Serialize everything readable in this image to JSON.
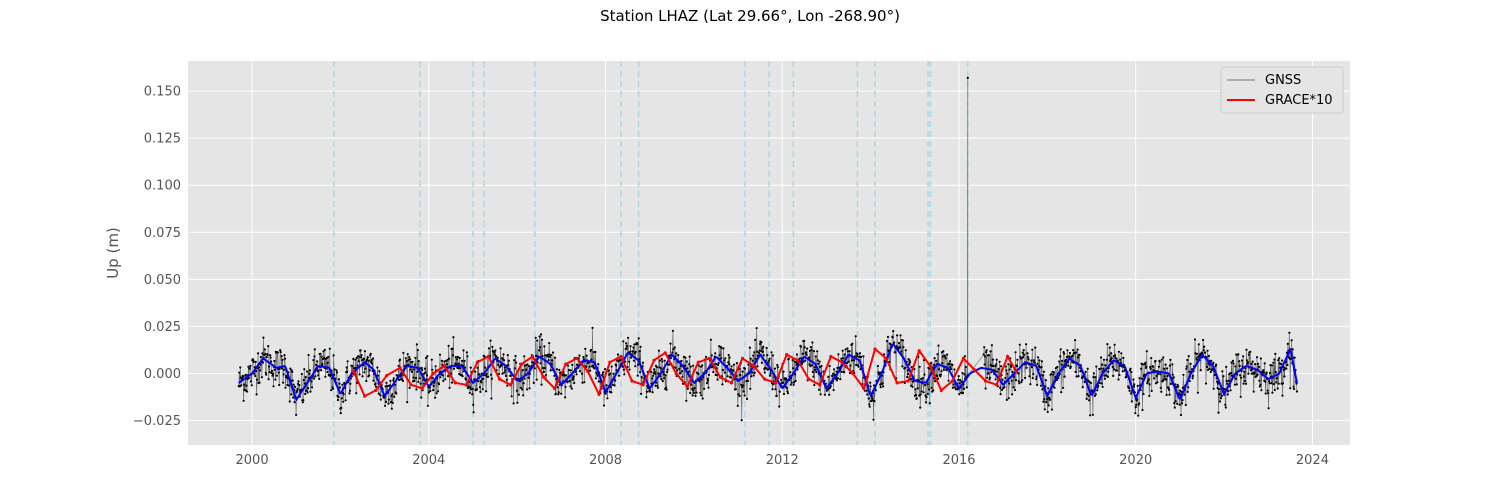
{
  "chart_data": {
    "type": "line",
    "title": "Station LHAZ (Lat 29.66°, Lon -268.90°)",
    "xlabel": "",
    "ylabel": "Up (m)",
    "xlim": [
      1998.55,
      2024.85
    ],
    "ylim": [
      -0.038,
      0.166
    ],
    "x_ticks": [
      2000,
      2004,
      2008,
      2012,
      2016,
      2020,
      2024
    ],
    "x_tick_labels": [
      "2000",
      "2004",
      "2008",
      "2012",
      "2016",
      "2020",
      "2024"
    ],
    "y_ticks": [
      -0.025,
      0.0,
      0.025,
      0.05,
      0.075,
      0.1,
      0.125,
      0.15
    ],
    "y_tick_labels": [
      "−0.025",
      "0.000",
      "0.025",
      "0.050",
      "0.075",
      "0.100",
      "0.125",
      "0.150"
    ],
    "grid": true,
    "legend_position": "top-right",
    "event_lines_x": [
      2001.85,
      2003.8,
      2005.0,
      2005.25,
      2006.4,
      2008.35,
      2008.75,
      2011.15,
      2011.7,
      2012.25,
      2013.7,
      2014.1,
      2015.3,
      2015.35,
      2016.2
    ],
    "spike": {
      "x": 2016.2,
      "y": 0.157
    },
    "series": [
      {
        "name": "GNSS",
        "type": "noisy-line",
        "x_start": 1999.7,
        "x_end": 2023.65,
        "samples": 2200,
        "noise_sd": 0.0055,
        "smooth_trace": {
          "x": [
            1999.7,
            2000.0,
            2000.25,
            2000.55,
            2000.75,
            2001.0,
            2001.25,
            2001.5,
            2001.75,
            2002.0,
            2002.25,
            2002.55,
            2002.75,
            2003.0,
            2003.25,
            2003.5,
            2003.75,
            2004.0,
            2004.25,
            2004.5,
            2004.75,
            2005.0,
            2005.25,
            2005.5,
            2005.75,
            2006.0,
            2006.25,
            2006.5,
            2006.75,
            2007.0,
            2007.25,
            2007.5,
            2007.75,
            2008.0,
            2008.25,
            2008.5,
            2008.75,
            2009.0,
            2009.25,
            2009.5,
            2009.75,
            2010.0,
            2010.25,
            2010.5,
            2010.75,
            2011.0,
            2011.25,
            2011.5,
            2011.75,
            2012.0,
            2012.25,
            2012.5,
            2012.75,
            2013.0,
            2013.25,
            2013.5,
            2013.75,
            2014.0,
            2014.25,
            2014.5,
            2014.75,
            2015.0,
            2015.25,
            2015.5,
            2015.75,
            2016.0,
            2016.25,
            2016.5,
            2016.75,
            2017.0,
            2017.25,
            2017.5,
            2017.75,
            2018.0,
            2018.25,
            2018.5,
            2018.75,
            2019.0,
            2019.25,
            2019.5,
            2019.75,
            2020.0,
            2020.25,
            2020.5,
            2020.75,
            2021.0,
            2021.25,
            2021.5,
            2021.75,
            2022.0,
            2022.25,
            2022.5,
            2022.75,
            2023.0,
            2023.25,
            2023.5,
            2023.65
          ],
          "y": [
            -0.005,
            0.0,
            0.008,
            0.003,
            0.004,
            -0.014,
            -0.005,
            0.004,
            0.003,
            -0.011,
            0.0,
            0.006,
            0.002,
            -0.012,
            -0.004,
            0.004,
            0.003,
            -0.007,
            0.0,
            0.004,
            0.004,
            -0.005,
            0.0,
            0.008,
            0.004,
            -0.004,
            0.0,
            0.009,
            0.005,
            -0.006,
            0.0,
            0.007,
            0.006,
            -0.01,
            0.0,
            0.011,
            0.007,
            -0.008,
            0.0,
            0.01,
            0.004,
            -0.005,
            0.0,
            0.009,
            0.003,
            -0.004,
            0.0,
            0.01,
            0.002,
            -0.008,
            0.0,
            0.009,
            0.005,
            -0.008,
            0.0,
            0.01,
            0.007,
            -0.012,
            0.0,
            0.016,
            0.008,
            -0.004,
            -0.005,
            0.005,
            0.003,
            -0.008,
            0.0,
            0.003,
            0.002,
            -0.006,
            0.0,
            0.006,
            0.004,
            -0.012,
            0.0,
            0.008,
            0.004,
            -0.012,
            0.0,
            0.007,
            0.004,
            -0.013,
            0.0,
            0.001,
            0.0,
            -0.014,
            0.0,
            0.01,
            0.004,
            -0.011,
            0.0,
            0.004,
            0.002,
            -0.003,
            0.0,
            0.013,
            -0.005
          ]
        },
        "color": "#000000"
      },
      {
        "name": "GRACE*10",
        "type": "line",
        "x": [
          2002.3,
          2002.55,
          2002.8,
          2003.05,
          2003.35,
          2003.6,
          2003.85,
          2004.1,
          2004.35,
          2004.6,
          2004.85,
          2005.1,
          2005.35,
          2005.6,
          2005.85,
          2006.1,
          2006.35,
          2006.6,
          2006.85,
          2007.1,
          2007.35,
          2007.6,
          2007.85,
          2008.1,
          2008.35,
          2008.6,
          2008.85,
          2009.1,
          2009.35,
          2009.6,
          2009.85,
          2010.1,
          2010.35,
          2010.6,
          2010.85,
          2011.1,
          2011.35,
          2011.6,
          2011.85,
          2012.1,
          2012.35,
          2012.6,
          2012.85,
          2013.1,
          2013.35,
          2013.6,
          2013.85,
          2014.1,
          2014.35,
          2014.6,
          2014.85,
          2015.1,
          2015.35,
          2015.6,
          2015.85,
          2016.1,
          2016.35,
          2016.6,
          2016.85,
          2017.1,
          2017.3
        ],
        "y": [
          0.001,
          -0.012,
          -0.009,
          -0.001,
          0.003,
          -0.006,
          -0.008,
          0.0,
          0.004,
          -0.005,
          -0.006,
          0.006,
          0.009,
          -0.003,
          -0.006,
          0.005,
          0.009,
          -0.002,
          -0.008,
          0.005,
          0.008,
          0.001,
          -0.011,
          0.006,
          0.009,
          -0.004,
          -0.006,
          0.007,
          0.011,
          0.0,
          -0.007,
          0.006,
          0.008,
          -0.002,
          -0.005,
          0.008,
          0.004,
          -0.003,
          -0.005,
          0.01,
          0.007,
          -0.003,
          -0.006,
          0.009,
          0.006,
          0.0,
          -0.008,
          0.013,
          0.008,
          -0.005,
          -0.004,
          0.012,
          0.004,
          -0.009,
          -0.004,
          0.008,
          0.002,
          -0.004,
          -0.006,
          0.009,
          0.001
        ],
        "color": "#ff0000"
      }
    ],
    "colors": {
      "plot_background": "#e5e5e5",
      "grid": "#ffffff",
      "gnss": "#000000",
      "gnss_smooth": "#0000ff",
      "grace": "#ff0000",
      "event_lines": "#add8e6"
    }
  }
}
